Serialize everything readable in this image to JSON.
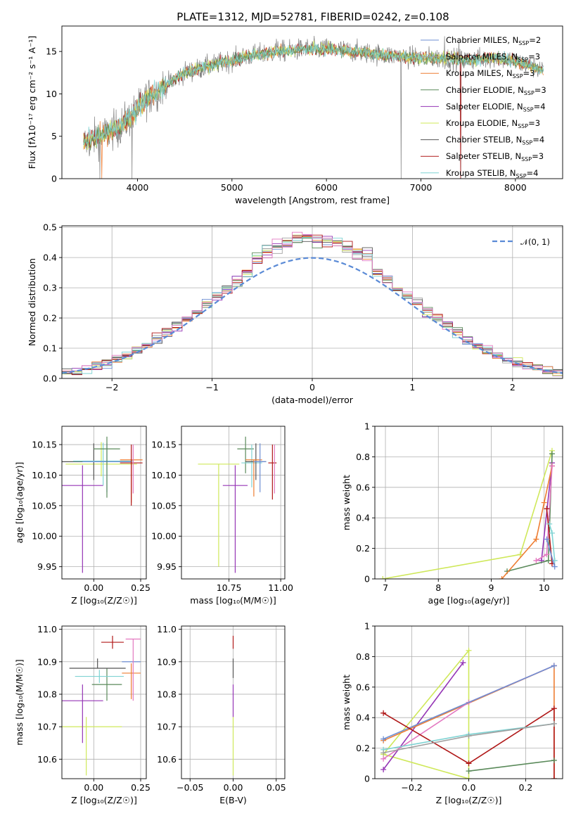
{
  "title": "PLATE=1312, MJD=52781, FIBERID=0242, z=0.108",
  "colors": {
    "Chabrier MILES": "#6e8fd3",
    "Salpeter MILES": "#a0a0a0",
    "Kroupa MILES": "#ee7d32",
    "Chabrier ELODIE": "#5a8a5a",
    "Salpeter ELODIE": "#9535b5",
    "Kroupa ELODIE": "#cfe85a",
    "Chabrier STELIB": "#555555",
    "Salpeter STELIB": "#b01818",
    "Kroupa STELIB": "#7fd3d3",
    "pink": "#e378c0"
  },
  "chart_data": [
    {
      "id": "spectrum",
      "type": "line",
      "xlabel": "wavelength [Angstrom, rest frame]",
      "ylabel": "Flux [fλ10⁻¹⁷ erg cm⁻² s⁻¹ A⁻¹]",
      "xlim": [
        3200,
        8500
      ],
      "ylim": [
        0,
        18
      ],
      "xticks": [
        4000,
        5000,
        6000,
        7000,
        8000
      ],
      "yticks": [
        0,
        5,
        10,
        15
      ],
      "grid": false,
      "legend_position": "upper-right",
      "legend": [
        {
          "key": "Chabrier MILES",
          "label": "Chabrier MILES, N",
          "n": "2"
        },
        {
          "key": "Salpeter MILES",
          "label": "Salpeter MILES, N",
          "n": "3"
        },
        {
          "key": "Kroupa MILES",
          "label": "Kroupa MILES, N",
          "n": "3"
        },
        {
          "key": "Chabrier ELODIE",
          "label": "Chabrier ELODIE, N",
          "n": "3"
        },
        {
          "key": "Salpeter ELODIE",
          "label": "Salpeter ELODIE, N",
          "n": "4"
        },
        {
          "key": "Kroupa ELODIE",
          "label": "Kroupa ELODIE, N",
          "n": "3"
        },
        {
          "key": "Chabrier STELIB",
          "label": "Chabrier STELIB, N",
          "n": "4"
        },
        {
          "key": "Salpeter STELIB",
          "label": "Salpeter STELIB, N",
          "n": "3"
        },
        {
          "key": "Kroupa STELIB",
          "label": "Kroupa STELIB, N",
          "n": "4"
        }
      ],
      "legend_subscript": "SSP",
      "continuum": {
        "x": [
          3430,
          3600,
          3800,
          3950,
          4100,
          4300,
          4500,
          4800,
          5000,
          5200,
          5500,
          5800,
          6000,
          6300,
          6600,
          6900,
          7200,
          7500,
          7800,
          8000,
          8300
        ],
        "y": [
          4.2,
          5.0,
          6.0,
          7.5,
          9.5,
          11.0,
          12.5,
          13.4,
          14.0,
          14.5,
          15.0,
          15.3,
          15.3,
          15.0,
          14.6,
          14.3,
          14.2,
          14.0,
          14.3,
          13.8,
          12.8
        ]
      },
      "noise_amplitude": 0.9,
      "dips": [
        {
          "x": 3600,
          "y": 0
        },
        {
          "x": 3940,
          "y": 0
        },
        {
          "x": 6790,
          "y": 0
        },
        {
          "x": 7420,
          "y": 0
        }
      ],
      "upward_spikes": [
        {
          "x": 5470,
          "y": 16.5
        },
        {
          "x": 7250,
          "y": 16.8
        },
        {
          "x": 7400,
          "y": 16.2
        }
      ]
    },
    {
      "id": "residuals",
      "type": "step-histogram",
      "xlabel": "(data-model)/error",
      "ylabel": "Normed distribution",
      "xlim": [
        -2.5,
        2.5
      ],
      "ylim": [
        0,
        0.505
      ],
      "xticks": [
        -2,
        -1,
        0,
        1,
        2
      ],
      "yticks": [
        0.0,
        0.1,
        0.2,
        0.3,
        0.4,
        0.5
      ],
      "grid": true,
      "bin_width": 0.1,
      "gaussian": {
        "label": "𝒩(0, 1)",
        "mean": 0,
        "sigma": 1,
        "color": "#5a8ad6"
      },
      "legend_position": "upper-right"
    },
    {
      "id": "age-vs-Z",
      "type": "errorbar",
      "xlabel": "Z [log₁₀(Z/Z☉)]",
      "ylabel": "age  [log₁₀(age/yr)]",
      "xlim": [
        -0.17,
        0.28
      ],
      "ylim": [
        9.93,
        10.18
      ],
      "xticks": [
        0.0,
        0.25
      ],
      "xticklabels": [
        "0.00",
        "0.25"
      ],
      "yticks": [
        9.95,
        10.0,
        10.05,
        10.1,
        10.15
      ],
      "yticklabels": [
        "9.95",
        "10.00",
        "10.05",
        "10.10",
        "10.15"
      ],
      "grid": true,
      "points": [
        {
          "key": "Salpeter ELODIE",
          "x": -0.06,
          "xerr": 0.11,
          "y": 10.083,
          "yerr_lo": 0.143,
          "yerr_hi": 0.033
        },
        {
          "key": "Kroupa ELODIE",
          "x": 0.04,
          "xerr": 0.19,
          "y": 10.118,
          "yerr_lo": 0.02,
          "yerr_hi": 0.036
        },
        {
          "key": "Chabrier STELIB",
          "x": 0.0,
          "xerr": 0.19,
          "y": 10.122,
          "yerr_lo": 0.03,
          "yerr_hi": 0.03
        },
        {
          "key": "Kroupa STELIB",
          "x": 0.05,
          "xerr": 0.16,
          "y": 10.123,
          "yerr_lo": 0.04,
          "yerr_hi": 0.03
        },
        {
          "key": "Chabrier MILES",
          "x": 0.07,
          "xerr": 0.13,
          "y": 10.122,
          "yerr_lo": 0.05,
          "yerr_hi": 0.03
        },
        {
          "key": "Chabrier ELODIE",
          "x": 0.07,
          "xerr": 0.07,
          "y": 10.143,
          "yerr_lo": 0.08,
          "yerr_hi": 0.02
        },
        {
          "key": "Kroupa MILES",
          "x": 0.2,
          "xerr": 0.06,
          "y": 10.125,
          "yerr_lo": 0.07,
          "yerr_hi": 0.0
        },
        {
          "key": "Salpeter STELIB",
          "x": 0.2,
          "xerr": 0.06,
          "y": 10.12,
          "yerr_lo": 0.07,
          "yerr_hi": 0.03
        },
        {
          "key": "pink",
          "x": 0.21,
          "xerr": 0.0,
          "y": 10.12,
          "yerr_lo": 0.05,
          "yerr_hi": 0.03
        }
      ]
    },
    {
      "id": "age-vs-mass",
      "type": "errorbar",
      "xlabel": "mass [log₁₀(M/M☉)]",
      "ylabel": "",
      "xlim": [
        10.52,
        11.02
      ],
      "ylim": [
        9.93,
        10.18
      ],
      "xticks": [
        10.75,
        11.0
      ],
      "xticklabels": [
        "10.75",
        "11.00"
      ],
      "yticks": [
        9.95,
        10.0,
        10.05,
        10.1,
        10.15
      ],
      "yticklabels": [
        "9.95",
        "10.00",
        "10.05",
        "10.10",
        "10.15"
      ],
      "grid": true,
      "points": [
        {
          "key": "Kroupa ELODIE",
          "x": 10.7,
          "xerr": 0.1,
          "y": 10.118,
          "yerr_lo": 0.168,
          "yerr_hi": 0.0
        },
        {
          "key": "Salpeter ELODIE",
          "x": 10.78,
          "xerr": 0.06,
          "y": 10.083,
          "yerr_lo": 0.143,
          "yerr_hi": 0.033
        },
        {
          "key": "Chabrier ELODIE",
          "x": 10.83,
          "xerr": 0.04,
          "y": 10.143,
          "yerr_lo": 0.04,
          "yerr_hi": 0.02
        },
        {
          "key": "Kroupa STELIB",
          "x": 10.86,
          "xerr": 0.05,
          "y": 10.12,
          "yerr_lo": 0.04,
          "yerr_hi": 0.03
        },
        {
          "key": "Chabrier STELIB",
          "x": 10.88,
          "xerr": 0.05,
          "y": 10.122,
          "yerr_lo": 0.03,
          "yerr_hi": 0.03
        },
        {
          "key": "Kroupa MILES",
          "x": 10.87,
          "xerr": 0.04,
          "y": 10.125,
          "yerr_lo": 0.06,
          "yerr_hi": 0.0
        },
        {
          "key": "Chabrier MILES",
          "x": 10.9,
          "xerr": 0.03,
          "y": 10.122,
          "yerr_lo": 0.05,
          "yerr_hi": 0.03
        },
        {
          "key": "Salpeter STELIB",
          "x": 10.96,
          "xerr": 0.02,
          "y": 10.12,
          "yerr_lo": 0.06,
          "yerr_hi": 0.03
        },
        {
          "key": "pink",
          "x": 10.97,
          "xerr": 0.0,
          "y": 10.12,
          "yerr_lo": 0.05,
          "yerr_hi": 0.03
        }
      ]
    },
    {
      "id": "weight-vs-age",
      "type": "line",
      "xlabel": "age  [log₁₀(age/yr)]",
      "ylabel": "mass weight",
      "xlim": [
        6.8,
        10.35
      ],
      "ylim": [
        0,
        1.0
      ],
      "xticks": [
        7,
        8,
        9,
        10
      ],
      "yticks": [
        0.0,
        0.2,
        0.4,
        0.6,
        0.8,
        1.0
      ],
      "grid": true,
      "series": [
        {
          "key": "Kroupa ELODIE",
          "x": [
            6.95,
            9.55,
            10.15
          ],
          "y": [
            0.0,
            0.16,
            0.84
          ]
        },
        {
          "key": "Salpeter ELODIE",
          "x": [
            9.95,
            10.15
          ],
          "y": [
            0.12,
            0.76
          ]
        },
        {
          "key": "Chabrier ELODIE",
          "x": [
            9.3,
            10.08,
            10.15
          ],
          "y": [
            0.05,
            0.12,
            0.82
          ]
        },
        {
          "key": "Kroupa MILES",
          "x": [
            9.2,
            9.85,
            10.0,
            10.15
          ],
          "y": [
            0.0,
            0.26,
            0.5,
            0.74
          ]
        },
        {
          "key": "pink",
          "x": [
            9.85,
            10.05,
            10.15
          ],
          "y": [
            0.12,
            0.16,
            0.74
          ]
        },
        {
          "key": "Salpeter STELIB",
          "x": [
            10.05,
            10.15
          ],
          "y": [
            0.46,
            0.1
          ]
        },
        {
          "key": "Kroupa STELIB",
          "x": [
            10.1,
            10.15,
            10.2
          ],
          "y": [
            0.36,
            0.3,
            0.12
          ]
        },
        {
          "key": "Chabrier MILES",
          "x": [
            10.05,
            10.2
          ],
          "y": [
            0.26,
            0.08
          ]
        }
      ]
    },
    {
      "id": "mass-vs-Z",
      "type": "errorbar",
      "xlabel": "Z [log₁₀(Z/Z☉)]",
      "ylabel": "mass [log₁₀(M/M☉)]",
      "xlim": [
        -0.17,
        0.28
      ],
      "ylim": [
        10.54,
        11.01
      ],
      "xticks": [
        0.0,
        0.25
      ],
      "xticklabels": [
        "0.00",
        "0.25"
      ],
      "yticks": [
        10.6,
        10.7,
        10.8,
        10.9,
        11.0
      ],
      "yticklabels": [
        "10.6",
        "10.7",
        "10.8",
        "10.9",
        "11.0"
      ],
      "grid": true,
      "points": [
        {
          "key": "Kroupa ELODIE",
          "x": -0.04,
          "xerr": 0.19,
          "y": 10.7,
          "yerr_lo": 0.15,
          "yerr_hi": 0.03
        },
        {
          "key": "Salpeter ELODIE",
          "x": -0.06,
          "xerr": 0.11,
          "y": 10.78,
          "yerr_lo": 0.13,
          "yerr_hi": 0.05
        },
        {
          "key": "Chabrier ELODIE",
          "x": 0.07,
          "xerr": 0.08,
          "y": 10.83,
          "yerr_lo": 0.05,
          "yerr_hi": 0.05
        },
        {
          "key": "Kroupa STELIB",
          "x": 0.03,
          "xerr": 0.13,
          "y": 10.855,
          "yerr_lo": 0.02,
          "yerr_hi": 0.02
        },
        {
          "key": "Chabrier STELIB",
          "x": 0.02,
          "xerr": 0.15,
          "y": 10.88,
          "yerr_lo": 0.0,
          "yerr_hi": 0.03
        },
        {
          "key": "Kroupa MILES",
          "x": 0.2,
          "xerr": 0.05,
          "y": 10.865,
          "yerr_lo": 0.08,
          "yerr_hi": 0.03
        },
        {
          "key": "Chabrier MILES",
          "x": 0.2,
          "xerr": 0.05,
          "y": 10.9,
          "yerr_lo": 0.0,
          "yerr_hi": 0.0
        },
        {
          "key": "Salpeter STELIB",
          "x": 0.1,
          "xerr": 0.06,
          "y": 10.96,
          "yerr_lo": 0.02,
          "yerr_hi": 0.02
        },
        {
          "key": "pink",
          "x": 0.21,
          "xerr": 0.04,
          "y": 10.97,
          "yerr_lo": 0.19,
          "yerr_hi": 0.0
        }
      ]
    },
    {
      "id": "mass-vs-EBV",
      "type": "errorbar",
      "xlabel": "E(B-V)",
      "ylabel": "",
      "xlim": [
        -0.06,
        0.06
      ],
      "ylim": [
        10.54,
        11.01
      ],
      "xticks": [
        -0.05,
        0.0,
        0.05
      ],
      "xticklabels": [
        "−0.05",
        "0.00",
        "0.05"
      ],
      "yticks": [
        10.6,
        10.7,
        10.8,
        10.9,
        11.0
      ],
      "yticklabels": [
        "10.6",
        "10.7",
        "10.8",
        "10.9",
        "11.0"
      ],
      "grid": true,
      "points": [
        {
          "key": "Kroupa ELODIE",
          "x": 0.0,
          "xerr": 0.0,
          "y": 10.7,
          "yerr_lo": 0.15,
          "yerr_hi": 0.03
        },
        {
          "key": "Salpeter ELODIE",
          "x": 0.0,
          "xerr": 0.0,
          "y": 10.78,
          "yerr_lo": 0.05,
          "yerr_hi": 0.05
        },
        {
          "key": "Chabrier STELIB",
          "x": 0.0,
          "xerr": 0.0,
          "y": 10.88,
          "yerr_lo": 0.03,
          "yerr_hi": 0.03
        },
        {
          "key": "Salpeter STELIB",
          "x": 0.0,
          "xerr": 0.0,
          "y": 10.96,
          "yerr_lo": 0.02,
          "yerr_hi": 0.02
        }
      ]
    },
    {
      "id": "weight-vs-Z",
      "type": "line",
      "xlabel": "Z [log₁₀(Z/Z☉)]",
      "ylabel": "mass weight",
      "xlim": [
        -0.33,
        0.33
      ],
      "ylim": [
        0,
        1.0
      ],
      "xticks": [
        -0.2,
        0.0,
        0.2
      ],
      "xticklabels": [
        "−0.2",
        "0.0",
        "0.2"
      ],
      "yticks": [
        0.0,
        0.2,
        0.4,
        0.6,
        0.8,
        1.0
      ],
      "grid": true,
      "series": [
        {
          "key": "Kroupa ELODIE",
          "x": [
            -0.3,
            0.0,
            0.0,
            -0.3
          ],
          "y": [
            0.16,
            0.84,
            0.0,
            0.16
          ]
        },
        {
          "key": "Salpeter ELODIE",
          "x": [
            -0.3,
            -0.02
          ],
          "y": [
            0.06,
            0.76
          ]
        },
        {
          "key": "Kroupa MILES",
          "x": [
            -0.3,
            0.3,
            0.3
          ],
          "y": [
            0.25,
            0.74,
            0.0
          ]
        },
        {
          "key": "pink",
          "x": [
            -0.3,
            0.0,
            0.3
          ],
          "y": [
            0.13,
            0.5,
            0.74
          ]
        },
        {
          "key": "Chabrier MILES",
          "x": [
            -0.3,
            0.3
          ],
          "y": [
            0.26,
            0.74
          ]
        },
        {
          "key": "Salpeter STELIB",
          "x": [
            -0.3,
            0.0,
            0.3,
            0.3
          ],
          "y": [
            0.43,
            0.1,
            0.46,
            0.0
          ]
        },
        {
          "key": "Kroupa STELIB",
          "x": [
            -0.3,
            0.0,
            0.3
          ],
          "y": [
            0.19,
            0.29,
            0.36
          ]
        },
        {
          "key": "Salpeter MILES",
          "x": [
            -0.3,
            0.0,
            0.3
          ],
          "y": [
            0.17,
            0.28,
            0.36
          ]
        },
        {
          "key": "Chabrier ELODIE",
          "x": [
            0.0,
            0.3
          ],
          "y": [
            0.05,
            0.12
          ]
        }
      ]
    }
  ]
}
